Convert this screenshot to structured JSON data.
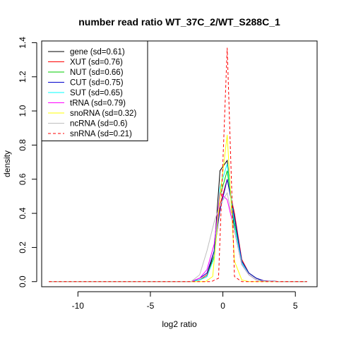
{
  "chart_data": {
    "type": "line",
    "title": "number read ratio WT_37C_2/WT_S288C_1",
    "xlabel": "log2 ratio",
    "ylabel": "density",
    "xlim": [
      -12.5,
      6.5
    ],
    "ylim": [
      -0.03,
      1.41
    ],
    "x_ticks": [
      -10,
      -5,
      0,
      5
    ],
    "y_ticks": [
      0.0,
      0.2,
      0.4,
      0.6,
      0.8,
      1.0,
      1.2,
      1.4
    ],
    "x_tick_labels": [
      "-10",
      "-5",
      "0",
      "5"
    ],
    "y_tick_labels": [
      "0.0",
      "0.2",
      "0.4",
      "0.6",
      "0.8",
      "1.0",
      "1.2",
      "1.4"
    ],
    "grid": false,
    "legend_position": "top-left",
    "series": [
      {
        "name": "gene (sd=0.61)",
        "color": "#000000",
        "dash": "solid",
        "x": [
          -12,
          -2.2,
          -1.6,
          -1.1,
          -0.6,
          -0.2,
          0.3,
          0.8,
          1.3,
          1.8,
          2.3,
          2.8,
          4,
          5.8
        ],
        "y": [
          0,
          0,
          0.01,
          0.03,
          0.18,
          0.65,
          0.71,
          0.3,
          0.1,
          0.04,
          0.01,
          0.003,
          0,
          0
        ]
      },
      {
        "name": "XUT (sd=0.76)",
        "color": "#ff0000",
        "dash": "solid",
        "x": [
          -12,
          -2.2,
          -1.6,
          -1.1,
          -0.6,
          -0.2,
          0.3,
          0.8,
          1.3,
          1.8,
          2.3,
          2.8,
          4,
          5.8
        ],
        "y": [
          0,
          0,
          0.01,
          0.04,
          0.15,
          0.45,
          0.6,
          0.4,
          0.13,
          0.05,
          0.02,
          0.005,
          0,
          0
        ]
      },
      {
        "name": "NUT (sd=0.66)",
        "color": "#00cc00",
        "dash": "solid",
        "x": [
          -12,
          -2.2,
          -1.6,
          -1.1,
          -0.6,
          -0.2,
          0.3,
          0.8,
          1.3,
          1.8,
          2.3,
          2.8,
          4,
          5.8
        ],
        "y": [
          0,
          0,
          0.01,
          0.03,
          0.15,
          0.5,
          0.65,
          0.35,
          0.12,
          0.05,
          0.02,
          0.004,
          0,
          0
        ]
      },
      {
        "name": "CUT (sd=0.75)",
        "color": "#0000cc",
        "dash": "solid",
        "x": [
          -12,
          -2.2,
          -1.6,
          -1.1,
          -0.6,
          -0.2,
          0.3,
          0.8,
          1.3,
          1.8,
          2.3,
          2.8,
          4,
          5.8
        ],
        "y": [
          0,
          0,
          0.02,
          0.05,
          0.18,
          0.42,
          0.6,
          0.38,
          0.12,
          0.05,
          0.02,
          0.005,
          0,
          0
        ]
      },
      {
        "name": "SUT (sd=0.65)",
        "color": "#00ffff",
        "dash": "solid",
        "x": [
          -12,
          -2.2,
          -1.6,
          -1.1,
          -0.6,
          -0.2,
          0.3,
          0.8,
          1.3,
          1.8,
          2.3,
          2.8,
          4,
          5.8
        ],
        "y": [
          0,
          0,
          0.01,
          0.03,
          0.14,
          0.55,
          0.69,
          0.33,
          0.11,
          0.04,
          0.01,
          0.003,
          0,
          0
        ]
      },
      {
        "name": "tRNA (sd=0.79)",
        "color": "#ff00ff",
        "dash": "solid",
        "x": [
          -12,
          -2.2,
          -1.6,
          -1.1,
          -0.6,
          -0.2,
          0.3,
          0.8,
          1.3,
          1.8,
          2.3,
          2.8,
          4,
          5.8
        ],
        "y": [
          0,
          0,
          0.02,
          0.07,
          0.22,
          0.52,
          0.48,
          0.3,
          0.1,
          0.04,
          0.01,
          0.003,
          0,
          0
        ]
      },
      {
        "name": "snoRNA (sd=0.32)",
        "color": "#ffff00",
        "dash": "solid",
        "x": [
          -12,
          -1.2,
          -0.7,
          -0.2,
          0.3,
          0.8,
          1.3,
          1.8,
          5.8
        ],
        "y": [
          0,
          0,
          0.03,
          0.5,
          0.86,
          0.12,
          0.01,
          0,
          0
        ]
      },
      {
        "name": "ncRNA (sd=0.6)",
        "color": "#bebebe",
        "dash": "solid",
        "x": [
          -12,
          -2.2,
          -1.6,
          -1.1,
          -0.6,
          -0.2,
          0.3,
          0.8,
          1.3,
          1.8,
          2.3,
          2.8,
          4,
          5.8
        ],
        "y": [
          0,
          0,
          0.04,
          0.18,
          0.35,
          0.45,
          0.52,
          0.3,
          0.1,
          0.04,
          0.01,
          0.003,
          0,
          0
        ]
      },
      {
        "name": "snRNA (sd=0.21)",
        "color": "#ff0000",
        "dash": "dashed",
        "x": [
          -12,
          -0.8,
          -0.3,
          0.3,
          0.8,
          1.3,
          5.8
        ],
        "y": [
          0,
          0,
          0.02,
          1.37,
          0.03,
          0,
          0
        ]
      }
    ]
  }
}
